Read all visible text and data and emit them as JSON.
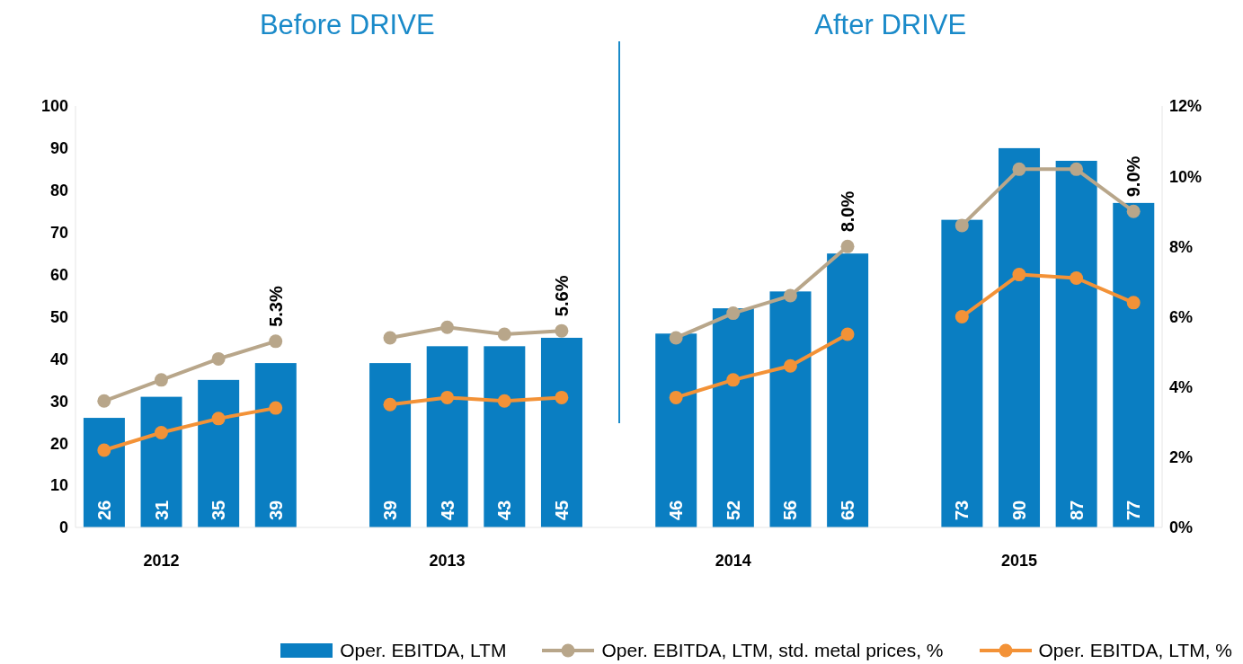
{
  "chart_data": {
    "type": "bar",
    "categories": [
      null,
      "2012",
      null,
      null,
      null,
      null,
      "2013",
      null,
      null,
      null,
      null,
      "2014",
      null,
      null,
      null,
      null,
      "2015",
      null,
      null
    ],
    "annotations": [
      "Before DRIVE",
      "After DRIVE"
    ],
    "series": [
      {
        "name": "Oper. EBITDA, LTM",
        "color": "#0a7ec2",
        "values": [
          26,
          31,
          35,
          39,
          null,
          39,
          43,
          43,
          45,
          null,
          46,
          52,
          56,
          65,
          null,
          73,
          90,
          87,
          77
        ],
        "value_labels": [
          "26",
          "31",
          "35",
          "39",
          null,
          "39",
          "43",
          "43",
          "45",
          null,
          "46",
          "52",
          "56",
          "65",
          null,
          "73",
          "90",
          "87",
          "77"
        ]
      },
      {
        "name": "Oper. EBITDA, LTM, std. metal prices, %",
        "type": "line",
        "axis": "y2",
        "color": "#b8a68a",
        "values": [
          3.6,
          4.2,
          4.8,
          5.3,
          null,
          5.4,
          5.7,
          5.5,
          5.6,
          null,
          5.4,
          6.1,
          6.6,
          8.0,
          null,
          8.6,
          10.2,
          10.2,
          9.0
        ],
        "value_labels": [
          null,
          null,
          null,
          "5.3%",
          null,
          null,
          null,
          null,
          "5.6%",
          null,
          null,
          null,
          null,
          "8.0%",
          null,
          null,
          null,
          null,
          "9.0%"
        ]
      },
      {
        "name": "Oper. EBITDA, LTM, %",
        "type": "line",
        "axis": "y2",
        "color": "#f39237",
        "values": [
          2.2,
          2.7,
          3.1,
          3.4,
          null,
          3.5,
          3.7,
          3.6,
          3.7,
          null,
          3.7,
          4.2,
          4.6,
          5.5,
          null,
          6.0,
          7.2,
          7.1,
          6.4
        ]
      }
    ],
    "ylim": [
      0,
      100
    ],
    "yticks": [
      0,
      10,
      20,
      30,
      40,
      50,
      60,
      70,
      80,
      90,
      100
    ],
    "y2lim": [
      0,
      12
    ],
    "y2ticks": [
      {
        "value": 0,
        "label": "0%"
      },
      {
        "value": 2,
        "label": "2%"
      },
      {
        "value": 4,
        "label": "4%"
      },
      {
        "value": 6,
        "label": "6%"
      },
      {
        "value": 8,
        "label": "8%"
      },
      {
        "value": 10,
        "label": "10%"
      },
      {
        "value": 12,
        "label": "12%"
      }
    ],
    "marker": "circle",
    "line_style": "solid",
    "legend": "bottom",
    "grid": false
  }
}
